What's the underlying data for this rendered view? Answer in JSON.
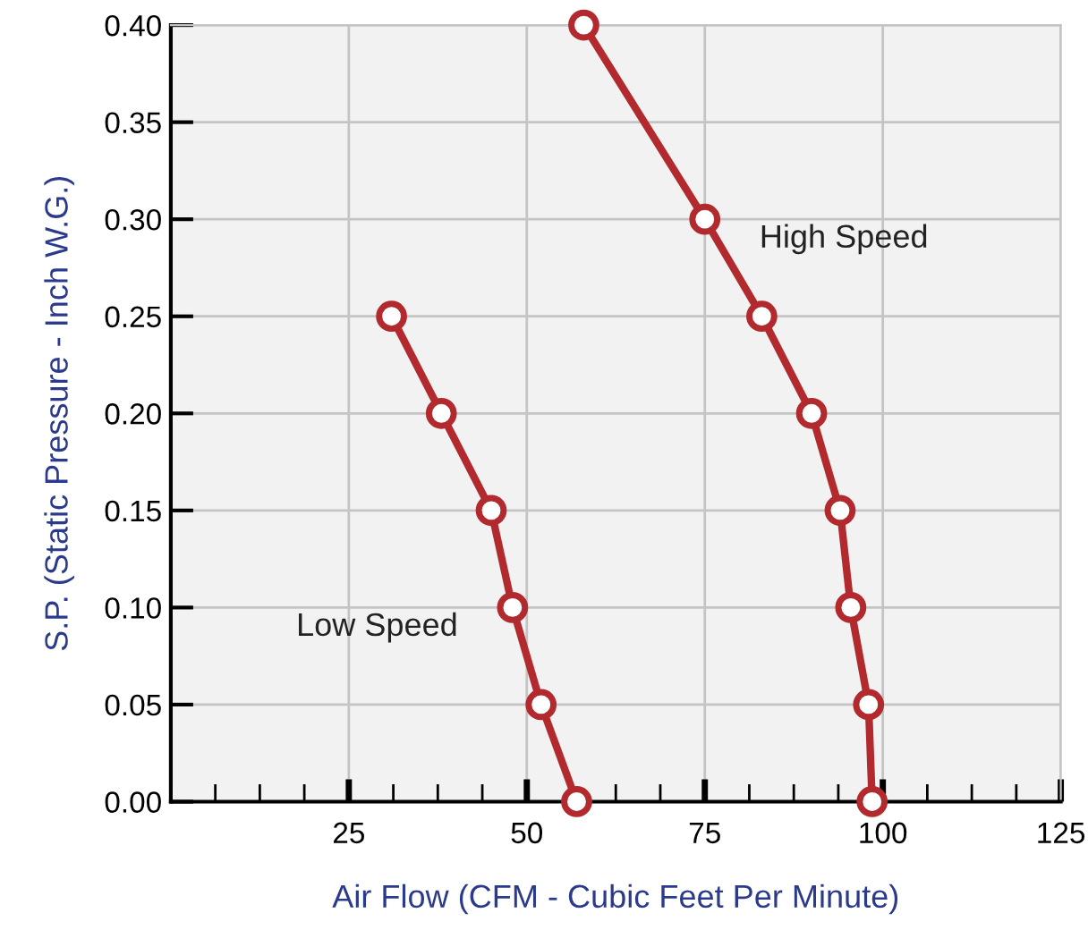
{
  "chart_data": {
    "type": "line",
    "xlabel": "Air Flow (CFM - Cubic Feet Per Minute)",
    "ylabel": "S.P. (Static Pressure - Inch W.G.)",
    "series": [
      {
        "name": "Low Speed",
        "color": "#b22a2e",
        "x": [
          31,
          38,
          45,
          48,
          52,
          57
        ],
        "values": [
          0.25,
          0.2,
          0.15,
          0.1,
          0.05,
          0.0
        ]
      },
      {
        "name": "High Speed",
        "color": "#b22a2e",
        "x": [
          58,
          75,
          83,
          90,
          94,
          95.5,
          98,
          98.5
        ],
        "values": [
          0.4,
          0.3,
          0.25,
          0.2,
          0.15,
          0.1,
          0.05,
          0.0
        ]
      }
    ],
    "xlim": [
      0,
      125
    ],
    "xticks": [
      25,
      50,
      75,
      100,
      125
    ],
    "ylim": [
      0,
      0.4
    ],
    "yticks": [
      {
        "value": 0,
        "label": "0.00"
      },
      {
        "value": 0.05,
        "label": "0.05"
      },
      {
        "value": 0.1,
        "label": "0.10"
      },
      {
        "value": 0.15,
        "label": "0.15"
      },
      {
        "value": 0.2,
        "label": "0.20"
      },
      {
        "value": 0.25,
        "label": "0.25"
      },
      {
        "value": 0.3,
        "label": "0.30"
      },
      {
        "value": 0.35,
        "label": "0.35"
      },
      {
        "value": 0.4,
        "label": "0.40"
      }
    ],
    "grid": true,
    "legend": false,
    "marker": "circle",
    "line_style": "solid"
  }
}
